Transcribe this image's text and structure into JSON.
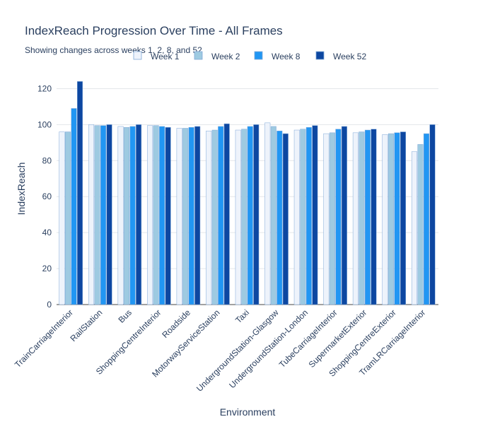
{
  "chart_data": {
    "type": "bar",
    "title": "IndexReach Progression Over Time - All Frames",
    "subtitle": "Showing changes across weeks 1, 2, 8, and 52",
    "xlabel": "Environment",
    "ylabel": "IndexReach",
    "ylim": [
      0,
      130
    ],
    "yticks": [
      0,
      20,
      40,
      60,
      80,
      100,
      120
    ],
    "grid": true,
    "legend_position": "top",
    "categories": [
      "TrainCarriageInterior",
      "RailStation",
      "Bus",
      "ShoppingCentreInterior",
      "Roadside",
      "MotorwayServiceStation",
      "Taxi",
      "UndergroundStation-Glasgow",
      "UndergroundStation-London",
      "TubeCarriageInterior",
      "SupermarketExterior",
      "ShoppingCentreExterior",
      "TramLRCarriageInterior"
    ],
    "series": [
      {
        "name": "Week 1",
        "color": "#eef3fb",
        "values": [
          96,
          100,
          99,
          99.5,
          98,
          96.5,
          97,
          101,
          97,
          95,
          95.5,
          94.5,
          85
        ]
      },
      {
        "name": "Week 2",
        "color": "#9ecae1",
        "values": [
          96,
          99.5,
          98.5,
          99.5,
          98,
          97,
          97.5,
          99,
          97.5,
          95.5,
          96,
          95,
          89
        ]
      },
      {
        "name": "Week 8",
        "color": "#2196f3",
        "values": [
          109,
          99.5,
          99,
          99,
          98.5,
          99,
          99,
          96.5,
          98.5,
          97.5,
          97,
          95.5,
          95
        ]
      },
      {
        "name": "Week 52",
        "color": "#0d47a1",
        "values": [
          124,
          100,
          100,
          98.5,
          99,
          100.5,
          100,
          95,
          99.5,
          99,
          97.5,
          96,
          100
        ]
      }
    ]
  }
}
